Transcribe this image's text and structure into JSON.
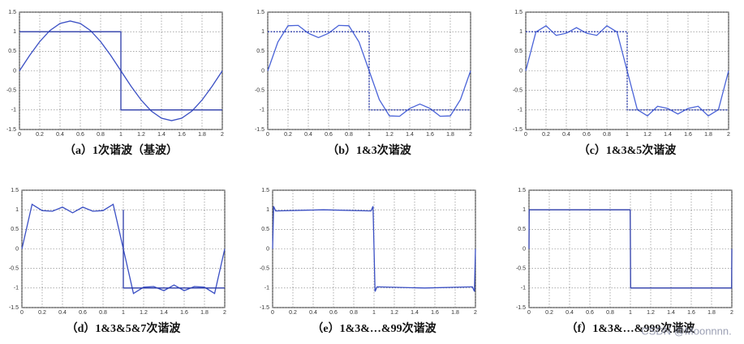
{
  "chart_data": [
    {
      "type": "line",
      "title": "（a）1次谐波（基波）",
      "xlim": [
        0,
        2
      ],
      "ylim": [
        -1.5,
        1.5
      ],
      "xticks": [
        0,
        0.2,
        0.4,
        0.6,
        0.8,
        1,
        1.2,
        1.4,
        1.6,
        1.8,
        2
      ],
      "yticks": [
        -1.5,
        -1,
        -0.5,
        0,
        0.5,
        1,
        1.5
      ],
      "grid": true,
      "series": [
        {
          "color": "#3a4fc4",
          "x": [
            0,
            0.1,
            0.2,
            0.3,
            0.4,
            0.5,
            0.6,
            0.7,
            0.8,
            0.9,
            1,
            1.1,
            1.2,
            1.3,
            1.4,
            1.5,
            1.6,
            1.7,
            1.8,
            1.9,
            2
          ],
          "values": [
            0,
            0.393,
            0.748,
            1.03,
            1.211,
            1.273,
            1.211,
            1.03,
            0.748,
            0.393,
            0,
            -0.393,
            -0.748,
            -1.03,
            -1.211,
            -1.273,
            -1.211,
            -1.03,
            -0.748,
            -0.393,
            0
          ]
        },
        {
          "color": "#2a3aa8",
          "x": [
            0,
            1,
            1,
            2
          ],
          "values": [
            1,
            1,
            -1,
            -1
          ]
        }
      ]
    },
    {
      "type": "line",
      "title": "（b）1&3次谐波",
      "xlim": [
        0,
        2
      ],
      "ylim": [
        -1.5,
        1.5
      ],
      "xticks": [
        0,
        0.2,
        0.4,
        0.6,
        0.8,
        1,
        1.2,
        1.4,
        1.6,
        1.8,
        2
      ],
      "yticks": [
        -1.5,
        -1,
        -0.5,
        0,
        0.5,
        1,
        1.5
      ],
      "grid": true,
      "series": [
        {
          "color": "#4a63d8",
          "x": [
            0,
            0.1,
            0.2,
            0.3,
            0.4,
            0.5,
            0.6,
            0.7,
            0.8,
            0.9,
            1,
            1.1,
            1.2,
            1.3,
            1.4,
            1.5,
            1.6,
            1.7,
            1.8,
            1.9,
            2
          ],
          "values": [
            0,
            0.737,
            1.152,
            1.161,
            0.961,
            0.849,
            0.961,
            1.161,
            1.152,
            0.737,
            0,
            -0.737,
            -1.152,
            -1.161,
            -0.961,
            -0.849,
            -0.961,
            -1.161,
            -1.152,
            -0.737,
            0
          ]
        },
        {
          "color": "#2a3aa8",
          "dash": true,
          "x": [
            0,
            1,
            1,
            2
          ],
          "values": [
            1,
            1,
            -1,
            -1
          ]
        }
      ]
    },
    {
      "type": "line",
      "title": "（c）1&3&5次谐波",
      "xlim": [
        0,
        2
      ],
      "ylim": [
        -1.5,
        1.5
      ],
      "xticks": [
        0,
        0.2,
        0.4,
        0.6,
        0.8,
        1,
        1.2,
        1.4,
        1.6,
        1.8,
        2
      ],
      "yticks": [
        -1.5,
        -1,
        -0.5,
        0,
        0.5,
        1,
        1.5
      ],
      "grid": true,
      "series": [
        {
          "color": "#4a63d8",
          "x": [
            0,
            0.1,
            0.2,
            0.3,
            0.4,
            0.5,
            0.6,
            0.7,
            0.8,
            0.9,
            1,
            1.1,
            1.2,
            1.3,
            1.4,
            1.5,
            1.6,
            1.7,
            1.8,
            1.9,
            2
          ],
          "values": [
            0,
            0.992,
            1.152,
            0.906,
            0.961,
            1.104,
            0.961,
            0.906,
            1.152,
            0.992,
            0,
            -0.992,
            -1.152,
            -0.906,
            -0.961,
            -1.104,
            -0.961,
            -0.906,
            -1.152,
            -0.992,
            0
          ]
        },
        {
          "color": "#2a3aa8",
          "dash": true,
          "x": [
            0,
            1,
            1,
            2
          ],
          "values": [
            1,
            1,
            -1,
            -1
          ]
        }
      ]
    },
    {
      "type": "line",
      "title": "（d）1&3&5&7次谐波",
      "xlim": [
        0,
        2
      ],
      "ylim": [
        -1.5,
        1.5
      ],
      "xticks": [
        0,
        0.2,
        0.4,
        0.6,
        0.8,
        1,
        1.2,
        1.4,
        1.6,
        1.8,
        2
      ],
      "yticks": [
        -1.5,
        -1,
        -0.5,
        0,
        0.5,
        1,
        1.5
      ],
      "grid": true,
      "series": [
        {
          "color": "#3a4fc4",
          "x": [
            0,
            0.1,
            0.2,
            0.3,
            0.4,
            0.5,
            0.6,
            0.7,
            0.8,
            0.9,
            1,
            1.1,
            1.2,
            1.3,
            1.4,
            1.5,
            1.6,
            1.7,
            1.8,
            1.9,
            2
          ],
          "values": [
            0,
            1.139,
            0.979,
            0.962,
            1.068,
            0.922,
            1.068,
            0.962,
            0.979,
            1.139,
            0,
            -1.139,
            -0.979,
            -0.962,
            -1.068,
            -0.922,
            -1.068,
            -0.962,
            -0.979,
            -1.139,
            0
          ]
        },
        {
          "color": "#2a3aa8",
          "x": [
            1,
            1,
            2
          ],
          "values": [
            1,
            -1,
            -1
          ]
        }
      ]
    },
    {
      "type": "line",
      "title": "（e）1&3&…&99次谐波",
      "xlim": [
        0,
        2
      ],
      "ylim": [
        -1.5,
        1.5
      ],
      "xticks": [
        0,
        0.2,
        0.4,
        0.6,
        0.8,
        1,
        1.2,
        1.4,
        1.6,
        1.8,
        2
      ],
      "yticks": [
        -1.5,
        -1,
        -0.5,
        0,
        0.5,
        1,
        1.5
      ],
      "grid": true,
      "series": [
        {
          "color": "#3a4fc4",
          "x": [
            0,
            0.01,
            0.03,
            0.5,
            0.97,
            0.99,
            1,
            1.01,
            1.03,
            1.5,
            1.97,
            1.99,
            2
          ],
          "values": [
            0,
            1.09,
            0.97,
            1,
            0.97,
            1.09,
            0,
            -1.09,
            -0.97,
            -1,
            -0.97,
            -1.09,
            0
          ]
        }
      ]
    },
    {
      "type": "line",
      "title": "（f）1&3&…&999次谐波",
      "xlim": [
        0,
        2
      ],
      "ylim": [
        -1.5,
        1.5
      ],
      "xticks": [
        0,
        0.2,
        0.4,
        0.6,
        0.8,
        1,
        1.2,
        1.4,
        1.6,
        1.8,
        2
      ],
      "yticks": [
        -1.5,
        -1,
        -0.5,
        0,
        0.5,
        1,
        1.5
      ],
      "grid": true,
      "series": [
        {
          "color": "#2a3aa8",
          "x": [
            0,
            0.002,
            0.5,
            0.998,
            1,
            1.002,
            1.5,
            1.998,
            2
          ],
          "values": [
            0,
            1,
            1,
            1,
            0,
            -1,
            -1,
            -1,
            0
          ]
        }
      ]
    }
  ],
  "watermark": "CSDN @Moonnnn."
}
